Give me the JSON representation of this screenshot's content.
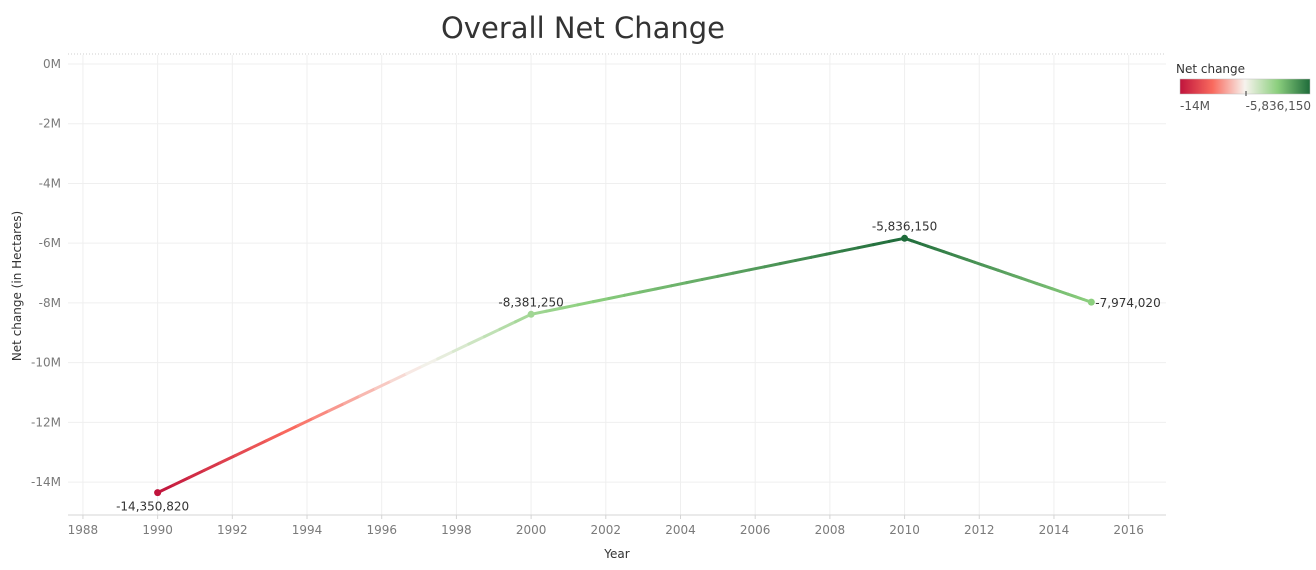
{
  "chart_data": {
    "type": "line",
    "title": "Overall Net Change",
    "xlabel": "Year",
    "ylabel": "Net change (in Hectares)",
    "x": [
      1990,
      2000,
      2010,
      2015
    ],
    "series": [
      {
        "values": [
          -14350820,
          -8381250,
          -5836150,
          -7974020
        ],
        "labels": [
          "-14,350,820",
          "-8,381,250",
          "-5,836,150",
          "-7,974,020"
        ]
      }
    ],
    "xlim": [
      1987.6,
      2017
    ],
    "ylim": [
      -15100000,
      300000
    ],
    "xticks": [
      1988,
      1990,
      1992,
      1994,
      1996,
      1998,
      2000,
      2002,
      2004,
      2006,
      2008,
      2010,
      2012,
      2014,
      2016
    ],
    "yticks": [
      0,
      -2000000,
      -4000000,
      -6000000,
      -8000000,
      -10000000,
      -12000000,
      -14000000
    ],
    "ytick_labels": [
      "0M",
      "-2M",
      "-4M",
      "-6M",
      "-8M",
      "-10M",
      "-12M",
      "-14M"
    ],
    "grid": true,
    "legend": {
      "title": "Net change",
      "placement": "top-right",
      "min_label": "-14M",
      "max_label": "-5,836,150",
      "colors": [
        "#c0143c",
        "#f96a5e",
        "#f7f3ee",
        "#8ccf7e",
        "#1e6b3a"
      ]
    }
  }
}
